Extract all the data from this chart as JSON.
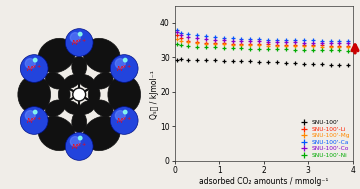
{
  "series": {
    "SNU-100'": {
      "color": "#000000",
      "values_x": [
        0.05,
        0.15,
        0.3,
        0.5,
        0.7,
        0.9,
        1.1,
        1.3,
        1.5,
        1.7,
        1.9,
        2.1,
        2.3,
        2.5,
        2.7,
        2.9,
        3.1,
        3.3,
        3.5,
        3.7,
        3.9
      ],
      "values_y": [
        29.3,
        29.4,
        29.3,
        29.2,
        29.2,
        29.1,
        29.0,
        29.0,
        28.9,
        28.8,
        28.7,
        28.6,
        28.5,
        28.4,
        28.3,
        28.2,
        28.1,
        28.0,
        27.9,
        27.8,
        27.7
      ]
    },
    "SNU-100'-Li": {
      "color": "#ff2200",
      "values_x": [
        0.05,
        0.15,
        0.3,
        0.5,
        0.7,
        0.9,
        1.1,
        1.3,
        1.5,
        1.7,
        1.9,
        2.1,
        2.3,
        2.5,
        2.7,
        2.9,
        3.1,
        3.3,
        3.5,
        3.7,
        3.9
      ],
      "values_y": [
        36.5,
        35.5,
        34.8,
        34.5,
        34.3,
        34.2,
        34.1,
        34.0,
        34.0,
        33.9,
        33.8,
        33.8,
        33.7,
        33.7,
        33.6,
        33.6,
        33.5,
        33.5,
        33.4,
        33.4,
        33.4
      ]
    },
    "SNU-100'-Mg": {
      "color": "#ff8800",
      "values_x": [
        0.05,
        0.15,
        0.3,
        0.5,
        0.7,
        0.9,
        1.1,
        1.3,
        1.5,
        1.7,
        1.9,
        2.1,
        2.3,
        2.5,
        2.7,
        2.9,
        3.1,
        3.3,
        3.5,
        3.7,
        3.9
      ],
      "values_y": [
        35.2,
        34.8,
        34.5,
        34.2,
        34.0,
        33.9,
        33.8,
        33.7,
        33.6,
        33.5,
        33.5,
        33.4,
        33.4,
        33.3,
        33.3,
        33.2,
        33.2,
        33.1,
        33.1,
        33.0,
        33.0
      ]
    },
    "SNU-100'-Ca": {
      "color": "#0055ff",
      "values_x": [
        0.05,
        0.15,
        0.3,
        0.5,
        0.7,
        0.9,
        1.1,
        1.3,
        1.5,
        1.7,
        1.9,
        2.1,
        2.3,
        2.5,
        2.7,
        2.9,
        3.1,
        3.3,
        3.5,
        3.7,
        3.9
      ],
      "values_y": [
        38.0,
        37.2,
        36.8,
        36.5,
        36.2,
        35.9,
        35.7,
        35.5,
        35.4,
        35.3,
        35.2,
        35.1,
        35.1,
        35.0,
        35.0,
        34.9,
        34.9,
        34.8,
        34.8,
        34.7,
        34.7
      ]
    },
    "SNU-100'-Co": {
      "color": "#8800cc",
      "values_x": [
        0.05,
        0.15,
        0.3,
        0.5,
        0.7,
        0.9,
        1.1,
        1.3,
        1.5,
        1.7,
        1.9,
        2.1,
        2.3,
        2.5,
        2.7,
        2.9,
        3.1,
        3.3,
        3.5,
        3.7,
        3.9
      ],
      "values_y": [
        37.5,
        36.5,
        35.9,
        35.5,
        35.2,
        35.0,
        34.9,
        34.8,
        34.7,
        34.6,
        34.6,
        34.5,
        34.5,
        34.4,
        34.4,
        34.3,
        34.3,
        34.3,
        34.2,
        34.2,
        34.2
      ]
    },
    "SNU-100'-Ni": {
      "color": "#00aa00",
      "values_x": [
        0.05,
        0.15,
        0.3,
        0.5,
        0.7,
        0.9,
        1.1,
        1.3,
        1.5,
        1.7,
        1.9,
        2.1,
        2.3,
        2.5,
        2.7,
        2.9,
        3.1,
        3.3,
        3.5,
        3.7,
        3.9
      ],
      "values_y": [
        33.8,
        33.5,
        33.3,
        33.1,
        33.0,
        32.9,
        32.8,
        32.7,
        32.6,
        32.5,
        32.5,
        32.4,
        32.3,
        32.3,
        32.2,
        32.2,
        32.1,
        32.1,
        32.0,
        32.0,
        31.9
      ]
    }
  },
  "xlim": [
    0,
    4
  ],
  "ylim": [
    0,
    45
  ],
  "yticks": [
    0,
    10,
    20,
    30,
    40
  ],
  "xticks": [
    0,
    1,
    2,
    3,
    4
  ],
  "xlabel": "adsorbed CO₂ amounts / mmolg⁻¹",
  "ylabel": "Qₛ₟ / kJmol⁻¹",
  "legend_order": [
    "SNU-100'",
    "SNU-100'-Li",
    "SNU-100'-Mg",
    "SNU-100'-Ca",
    "SNU-100'-Co",
    "SNU-100'-Ni"
  ],
  "arrow_color": "#cc0000",
  "bg_color": "#f0ede8",
  "sphere_color": "#2244dd",
  "sphere_highlight": "#6688ff",
  "sphere_dot": "#00ee88",
  "linker_color": "#111111",
  "center_color": "#ffffff"
}
